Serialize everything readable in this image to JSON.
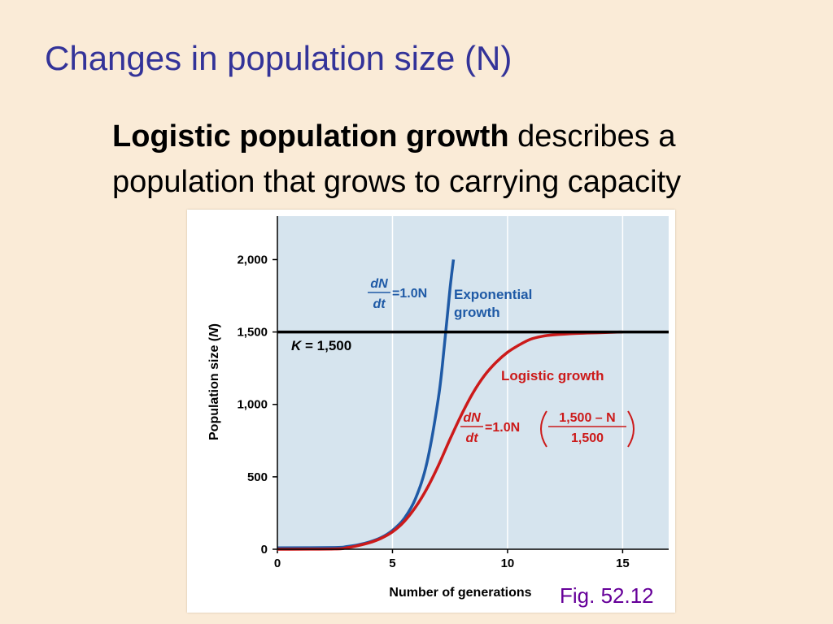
{
  "slide": {
    "title": "Changes in population size (N)",
    "subtitle_bold": "Logistic population growth",
    "subtitle_line1_rest": " describes a",
    "subtitle_line2": "population that grows to carrying capacity",
    "figure_caption": "Fig. 52.12"
  },
  "colors": {
    "background": "#FAEBD7",
    "title": "#333399",
    "plot_area": "#D6E4EE",
    "exponential": "#1F5AA6",
    "logistic": "#CC1A1A",
    "caption": "#660099"
  },
  "chart_data": {
    "type": "line",
    "title": "",
    "xlabel": "Number of generations",
    "ylabel": "Population size (N)",
    "xlim": [
      0,
      17
    ],
    "ylim": [
      0,
      2300
    ],
    "x_ticks": [
      0,
      5,
      10,
      15
    ],
    "y_ticks": [
      0,
      500,
      1000,
      1500,
      2000
    ],
    "x_tick_labels": [
      "0",
      "5",
      "10",
      "15"
    ],
    "y_tick_labels": [
      "0",
      "500",
      "1,000",
      "1,500",
      "2,000"
    ],
    "grid": "vertical lines at x ticks",
    "carrying_capacity": {
      "value": 1500,
      "label_italic": "K",
      "label_rest": " = 1,500"
    },
    "series": [
      {
        "name": "Exponential growth",
        "label_lines": [
          "Exponential",
          "growth"
        ],
        "equation": {
          "numerator": "dN",
          "denominator": "dt",
          "rhs": "=1.0N"
        },
        "x": [
          0,
          2.5,
          3,
          3.5,
          4,
          4.5,
          5,
          5.5,
          6,
          6.5,
          7,
          7.25,
          7.5,
          7.65
        ],
        "y": [
          10,
          12,
          18,
          30,
          50,
          80,
          130,
          210,
          350,
          600,
          1050,
          1400,
          1800,
          2000
        ]
      },
      {
        "name": "Logistic growth",
        "label_lines": [
          "Logistic growth"
        ],
        "equation": {
          "numerator": "dN",
          "denominator": "dt",
          "rhs": "=1.0N",
          "frac_numerator": "1,500 – N",
          "frac_denominator": "1,500"
        },
        "x": [
          0,
          2.5,
          3,
          3.5,
          4,
          4.5,
          5,
          5.5,
          6,
          6.5,
          7,
          7.5,
          8,
          8.5,
          9,
          9.5,
          10,
          10.5,
          11,
          11.5,
          12,
          13,
          14,
          15
        ],
        "y": [
          0,
          2,
          10,
          25,
          45,
          75,
          120,
          190,
          290,
          420,
          580,
          760,
          930,
          1080,
          1200,
          1290,
          1360,
          1410,
          1450,
          1470,
          1480,
          1490,
          1495,
          1500
        ]
      }
    ]
  }
}
